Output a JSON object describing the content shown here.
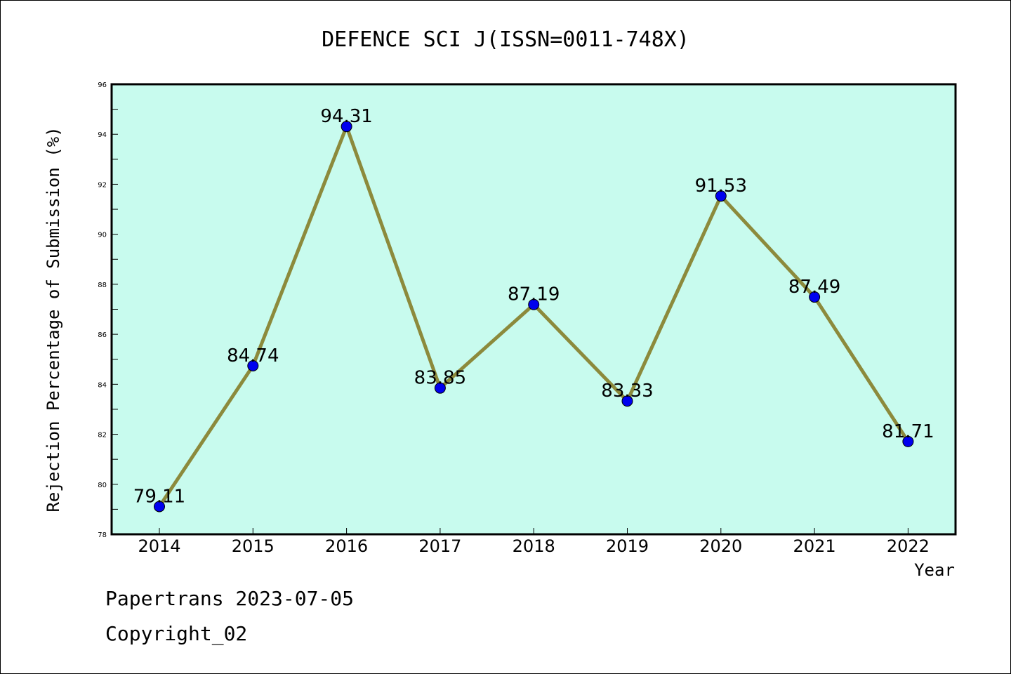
{
  "chart_data": {
    "type": "line",
    "title": "DEFENCE SCI J(ISSN=0011-748X)",
    "xlabel": "Year",
    "ylabel": "Rejection Percentage of Submission (%)",
    "categories": [
      "2014",
      "2015",
      "2016",
      "2017",
      "2018",
      "2019",
      "2020",
      "2021",
      "2022"
    ],
    "values": [
      79.11,
      84.74,
      94.31,
      83.85,
      87.19,
      83.33,
      91.53,
      87.49,
      81.71
    ],
    "data_labels": [
      "79.11",
      "84.74",
      "94.31",
      "83.85",
      "87.19",
      "83.33",
      "91.53",
      "87.49",
      "81.71"
    ],
    "ylim": [
      78,
      96
    ],
    "yticks": [
      "78",
      "80",
      "82",
      "84",
      "86",
      "88",
      "90",
      "92",
      "94",
      "96"
    ],
    "grid": false,
    "legend": "none",
    "colors": {
      "plot_background": "#c8fbee",
      "line": "#8c8a3c",
      "marker": "#0000ee"
    }
  },
  "footer": {
    "line1": "Papertrans 2023-07-05",
    "line2": "Copyright_02"
  }
}
